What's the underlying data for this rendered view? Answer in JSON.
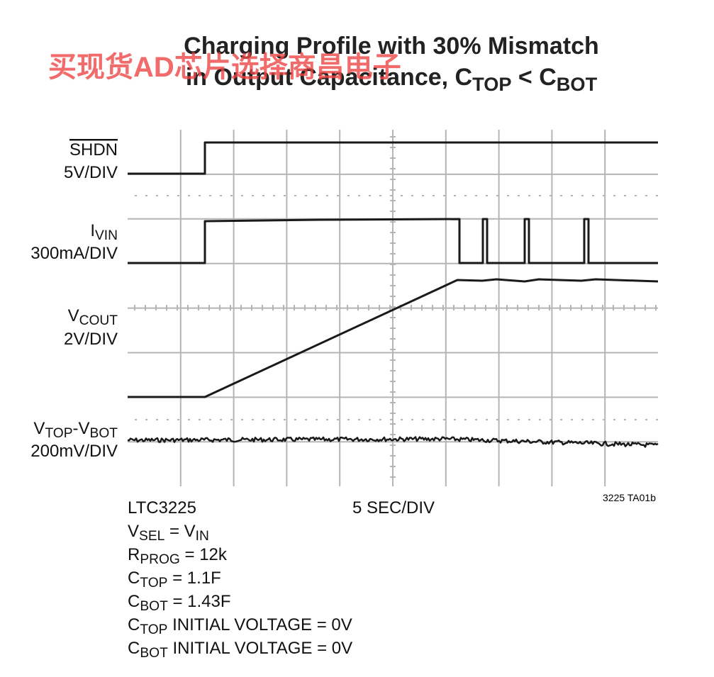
{
  "chart_data": {
    "type": "scope",
    "title": [
      [
        "Charging Profile with 30% Mismatch"
      ],
      [
        "in Output Capacitance, C",
        "TOP",
        " < C",
        "BOT"
      ]
    ],
    "watermark": "买现货AD芯片选择商昌电子",
    "channels": [
      {
        "name": [
          "SHDN"
        ],
        "overline": true,
        "scale": "5V/DIV"
      },
      {
        "name": [
          "I",
          "VIN"
        ],
        "scale": "300mA/DIV"
      },
      {
        "name": [
          "V",
          "COUT"
        ],
        "scale": "2V/DIV"
      },
      {
        "name": [
          "V",
          "TOP",
          "-V",
          "BOT"
        ],
        "scale": "200mV/DIV"
      }
    ],
    "part": "LTC3225",
    "time_scale": "5 SEC/DIV",
    "figure_id": "3225 TA01b",
    "notes": [
      [
        "V",
        "SEL",
        " = V",
        "IN"
      ],
      [
        "R",
        "PROG",
        " = 12k"
      ],
      [
        "C",
        "TOP",
        " = 1.1F"
      ],
      [
        "C",
        "BOT",
        " = 1.43F"
      ],
      [
        "C",
        "TOP",
        " INITIAL VOLTAGE = 0V"
      ],
      [
        "C",
        "BOT",
        " INITIAL VOLTAGE = 0V"
      ]
    ]
  }
}
